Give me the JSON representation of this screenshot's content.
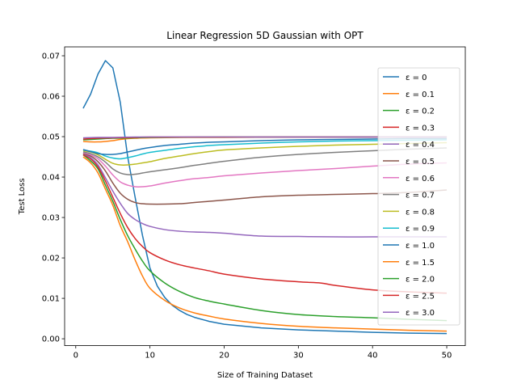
{
  "chart_data": {
    "type": "line",
    "title": "Linear Regression 5D Gaussian with OPT",
    "xlabel": "Size of Training Dataset",
    "ylabel": "Test Loss",
    "xlim": [
      -1.5,
      52.5
    ],
    "ylim": [
      -0.0017,
      0.0722
    ],
    "xticks": [
      0,
      10,
      20,
      30,
      40,
      50
    ],
    "xtick_labels": [
      "0",
      "10",
      "20",
      "30",
      "40",
      "50"
    ],
    "yticks": [
      0.0,
      0.01,
      0.02,
      0.03,
      0.04,
      0.05,
      0.06,
      0.07
    ],
    "ytick_labels": [
      "0.00",
      "0.01",
      "0.02",
      "0.03",
      "0.04",
      "0.05",
      "0.06",
      "0.07"
    ],
    "grid": false,
    "legend_position": "right",
    "series": [
      {
        "name": "ε = 0",
        "color": "#1f77b4",
        "x": [
          1,
          2,
          3,
          4,
          5,
          6,
          7,
          8,
          9,
          10,
          11,
          12,
          13,
          14,
          15,
          16,
          18,
          20,
          25,
          30,
          35,
          40,
          45,
          50
        ],
        "y": [
          0.057,
          0.0605,
          0.0655,
          0.0688,
          0.067,
          0.0585,
          0.045,
          0.035,
          0.0255,
          0.0175,
          0.013,
          0.0102,
          0.0083,
          0.007,
          0.006,
          0.0053,
          0.0043,
          0.0036,
          0.0027,
          0.0022,
          0.0019,
          0.0016,
          0.0014,
          0.0013
        ]
      },
      {
        "name": "ε = 0.1",
        "color": "#ff7f0e",
        "x": [
          1,
          2,
          3,
          4,
          5,
          6,
          7,
          8,
          9,
          10,
          12,
          14,
          16,
          18,
          20,
          25,
          30,
          35,
          40,
          45,
          50
        ],
        "y": [
          0.045,
          0.0435,
          0.041,
          0.037,
          0.033,
          0.028,
          0.024,
          0.0195,
          0.0155,
          0.0125,
          0.0095,
          0.0076,
          0.0064,
          0.0056,
          0.0049,
          0.0038,
          0.0031,
          0.0027,
          0.0024,
          0.0021,
          0.0019
        ]
      },
      {
        "name": "ε = 0.2",
        "color": "#2ca02c",
        "x": [
          1,
          2,
          3,
          4,
          5,
          6,
          7,
          8,
          9,
          10,
          12,
          14,
          16,
          18,
          20,
          25,
          30,
          35,
          40,
          45,
          50
        ],
        "y": [
          0.0455,
          0.044,
          0.042,
          0.038,
          0.034,
          0.0295,
          0.0255,
          0.0222,
          0.0192,
          0.0168,
          0.0138,
          0.0117,
          0.0102,
          0.0093,
          0.0086,
          0.007,
          0.006,
          0.0055,
          0.0052,
          0.0048,
          0.0045
        ]
      },
      {
        "name": "ε = 0.3",
        "color": "#d62728",
        "x": [
          1,
          2,
          3,
          4,
          5,
          6,
          7,
          8,
          9,
          10,
          12,
          14,
          16,
          18,
          20,
          25,
          30,
          33,
          35,
          40,
          45,
          50
        ],
        "y": [
          0.0455,
          0.0445,
          0.0425,
          0.039,
          0.035,
          0.031,
          0.0275,
          0.0248,
          0.0228,
          0.0213,
          0.0195,
          0.0183,
          0.0175,
          0.0168,
          0.016,
          0.0148,
          0.0141,
          0.0138,
          0.0132,
          0.0121,
          0.0116,
          0.0113
        ]
      },
      {
        "name": "ε = 0.4",
        "color": "#9467bd",
        "x": [
          1,
          2,
          3,
          4,
          5,
          6,
          7,
          8,
          9,
          10,
          12,
          14,
          16,
          18,
          20,
          25,
          30,
          35,
          40,
          45,
          50
        ],
        "y": [
          0.0458,
          0.0448,
          0.043,
          0.0398,
          0.0365,
          0.0335,
          0.031,
          0.0295,
          0.0285,
          0.0278,
          0.027,
          0.0266,
          0.0264,
          0.0263,
          0.0261,
          0.0254,
          0.0253,
          0.0252,
          0.0252,
          0.0252,
          0.0252
        ]
      },
      {
        "name": "ε = 0.5",
        "color": "#8c564b",
        "x": [
          1,
          2,
          3,
          4,
          5,
          6,
          7,
          8,
          9,
          10,
          12,
          14,
          16,
          18,
          20,
          25,
          30,
          35,
          40,
          45,
          50
        ],
        "y": [
          0.0458,
          0.0452,
          0.0438,
          0.0415,
          0.0385,
          0.036,
          0.0345,
          0.0337,
          0.0334,
          0.0333,
          0.0333,
          0.0334,
          0.0337,
          0.034,
          0.0343,
          0.0351,
          0.0355,
          0.0357,
          0.0359,
          0.0362,
          0.0368
        ]
      },
      {
        "name": "ε = 0.6",
        "color": "#e377c2",
        "x": [
          1,
          2,
          3,
          4,
          5,
          6,
          7,
          8,
          9,
          10,
          12,
          14,
          16,
          18,
          20,
          25,
          30,
          35,
          40,
          45,
          50
        ],
        "y": [
          0.046,
          0.0455,
          0.0445,
          0.0427,
          0.0405,
          0.0388,
          0.038,
          0.0376,
          0.0376,
          0.0378,
          0.0385,
          0.0391,
          0.0396,
          0.0399,
          0.0403,
          0.041,
          0.0416,
          0.0421,
          0.0427,
          0.0432,
          0.0435
        ]
      },
      {
        "name": "ε = 0.7",
        "color": "#7f7f7f",
        "x": [
          1,
          2,
          3,
          4,
          5,
          6,
          7,
          8,
          9,
          10,
          12,
          14,
          16,
          18,
          20,
          25,
          30,
          35,
          40,
          45,
          50
        ],
        "y": [
          0.0462,
          0.0458,
          0.045,
          0.0437,
          0.042,
          0.041,
          0.0406,
          0.0407,
          0.041,
          0.0413,
          0.0418,
          0.0423,
          0.0429,
          0.0434,
          0.0439,
          0.0449,
          0.0456,
          0.0461,
          0.0465,
          0.0469,
          0.0472
        ]
      },
      {
        "name": "ε = 0.8",
        "color": "#bcbd22",
        "x": [
          1,
          2,
          3,
          4,
          5,
          6,
          7,
          8,
          9,
          10,
          12,
          14,
          16,
          18,
          20,
          25,
          30,
          35,
          40,
          45,
          50
        ],
        "y": [
          0.0465,
          0.0462,
          0.0455,
          0.0444,
          0.0434,
          0.043,
          0.043,
          0.0432,
          0.0435,
          0.0438,
          0.0446,
          0.0452,
          0.0458,
          0.0463,
          0.0467,
          0.0472,
          0.0476,
          0.0479,
          0.0481,
          0.0483,
          0.0485
        ]
      },
      {
        "name": "ε = 0.9",
        "color": "#17becf",
        "x": [
          1,
          2,
          3,
          4,
          5,
          6,
          7,
          8,
          9,
          10,
          12,
          14,
          16,
          18,
          20,
          25,
          30,
          35,
          40,
          45,
          50
        ],
        "y": [
          0.0467,
          0.0464,
          0.046,
          0.0452,
          0.0447,
          0.0445,
          0.0448,
          0.0452,
          0.0457,
          0.0461,
          0.0466,
          0.0471,
          0.0475,
          0.0478,
          0.048,
          0.0484,
          0.0487,
          0.0489,
          0.049,
          0.0491,
          0.0492
        ]
      },
      {
        "name": "ε = 1.0",
        "color": "#1f77b4",
        "x": [
          1,
          2,
          3,
          4,
          5,
          6,
          7,
          8,
          9,
          10,
          12,
          14,
          16,
          18,
          20,
          25,
          30,
          35,
          40,
          45,
          50
        ],
        "y": [
          0.0468,
          0.0463,
          0.0458,
          0.0456,
          0.0456,
          0.0458,
          0.0462,
          0.0466,
          0.047,
          0.0473,
          0.0478,
          0.0481,
          0.0484,
          0.0486,
          0.0487,
          0.049,
          0.0492,
          0.0493,
          0.0494,
          0.0495,
          0.0495
        ]
      },
      {
        "name": "ε = 1.5",
        "color": "#ff7f0e",
        "x": [
          1,
          2,
          3,
          4,
          5,
          6,
          7,
          8,
          10,
          15,
          20,
          30,
          40,
          50
        ],
        "y": [
          0.0488,
          0.0487,
          0.0487,
          0.0488,
          0.049,
          0.0493,
          0.0495,
          0.0496,
          0.0497,
          0.0498,
          0.0498,
          0.0499,
          0.0499,
          0.0499
        ]
      },
      {
        "name": "ε = 2.0",
        "color": "#2ca02c",
        "x": [
          1,
          3,
          5,
          8,
          10,
          20,
          30,
          40,
          50
        ],
        "y": [
          0.0492,
          0.0494,
          0.0496,
          0.0497,
          0.0498,
          0.0499,
          0.0499,
          0.0499,
          0.0499
        ]
      },
      {
        "name": "ε = 2.5",
        "color": "#d62728",
        "x": [
          1,
          3,
          5,
          8,
          10,
          20,
          30,
          40,
          50
        ],
        "y": [
          0.0494,
          0.0496,
          0.0497,
          0.0498,
          0.0499,
          0.0499,
          0.0499,
          0.0499,
          0.0499
        ]
      },
      {
        "name": "ε = 3.0",
        "color": "#9467bd",
        "x": [
          1,
          3,
          5,
          8,
          10,
          20,
          30,
          40,
          50
        ],
        "y": [
          0.0497,
          0.0498,
          0.0498,
          0.0499,
          0.0499,
          0.0499,
          0.0499,
          0.0499,
          0.0499
        ]
      }
    ]
  }
}
